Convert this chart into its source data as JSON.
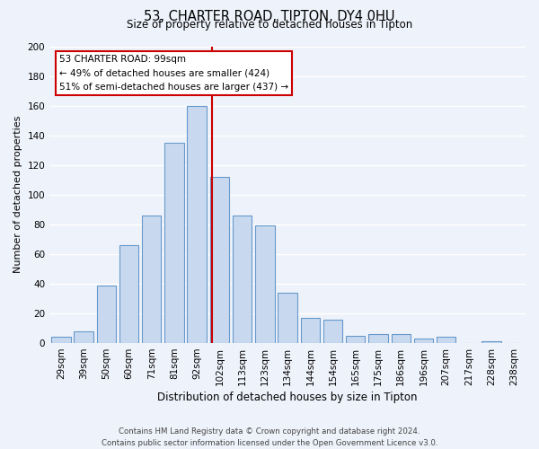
{
  "title_line1": "53, CHARTER ROAD, TIPTON, DY4 0HU",
  "title_line2": "Size of property relative to detached houses in Tipton",
  "xlabel": "Distribution of detached houses by size in Tipton",
  "ylabel": "Number of detached properties",
  "bar_labels": [
    "29sqm",
    "39sqm",
    "50sqm",
    "60sqm",
    "71sqm",
    "81sqm",
    "92sqm",
    "102sqm",
    "113sqm",
    "123sqm",
    "134sqm",
    "144sqm",
    "154sqm",
    "165sqm",
    "175sqm",
    "186sqm",
    "196sqm",
    "207sqm",
    "217sqm",
    "228sqm",
    "238sqm"
  ],
  "bar_values": [
    4,
    8,
    39,
    66,
    86,
    135,
    160,
    112,
    86,
    79,
    34,
    17,
    16,
    5,
    6,
    6,
    3,
    4,
    0,
    1,
    0
  ],
  "bar_color": "#c8d9ef",
  "bar_edge_color": "#6699cc",
  "vline_color": "#cc0000",
  "annotation_line1": "53 CHARTER ROAD: 99sqm",
  "annotation_line2": "← 49% of detached houses are smaller (424)",
  "annotation_line3": "51% of semi-detached houses are larger (437) →",
  "annotation_box_fc": "#ffffff",
  "annotation_box_ec": "#cc0000",
  "ylim": [
    0,
    200
  ],
  "yticks": [
    0,
    20,
    40,
    60,
    80,
    100,
    120,
    140,
    160,
    180,
    200
  ],
  "footer_line1": "Contains HM Land Registry data © Crown copyright and database right 2024.",
  "footer_line2": "Contains public sector information licensed under the Open Government Licence v3.0.",
  "background_color": "#eef2fa",
  "grid_color": "#d8dfe8",
  "title_fontsize": 10.5,
  "subtitle_fontsize": 8.5,
  "ylabel_fontsize": 8.0,
  "xlabel_fontsize": 8.5,
  "tick_fontsize": 7.5
}
